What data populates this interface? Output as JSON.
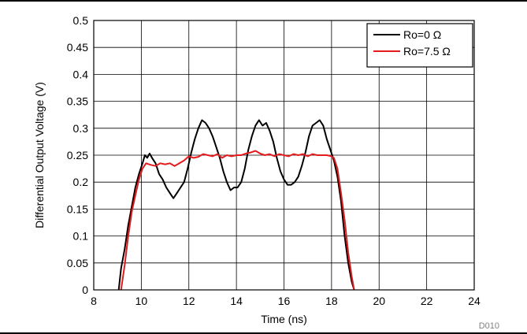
{
  "chart_data": {
    "type": "line",
    "xlabel": "Time (ns)",
    "ylabel": "Differential Output Voltage (V)",
    "xlim": [
      8,
      24
    ],
    "ylim": [
      0,
      0.5
    ],
    "xticks": [
      8,
      10,
      12,
      14,
      16,
      18,
      20,
      22,
      24
    ],
    "xtick_labels": [
      "8",
      "10",
      "12",
      "14",
      "16",
      "18",
      "20",
      "22",
      "24"
    ],
    "yticks": [
      0,
      0.05,
      0.1,
      0.15,
      0.2,
      0.25,
      0.3,
      0.35,
      0.4,
      0.45,
      0.5
    ],
    "ytick_labels": [
      "0",
      "0.05",
      "0.1",
      "0.15",
      "0.2",
      "0.25",
      "0.3",
      "0.35",
      "0.4",
      "0.45",
      "0.5"
    ],
    "grid": true,
    "legend_position": "top-right",
    "figure_id": "D010",
    "series": [
      {
        "name": "Ro=0 Ω",
        "color": "#000000",
        "x": [
          9.05,
          9.15,
          9.3,
          9.45,
          9.6,
          9.75,
          9.9,
          10.05,
          10.15,
          10.25,
          10.35,
          10.45,
          10.6,
          10.75,
          10.9,
          11.05,
          11.2,
          11.35,
          11.5,
          11.65,
          11.8,
          11.95,
          12.1,
          12.25,
          12.4,
          12.55,
          12.7,
          12.85,
          13.0,
          13.15,
          13.3,
          13.45,
          13.6,
          13.75,
          13.9,
          14.05,
          14.2,
          14.35,
          14.5,
          14.65,
          14.8,
          14.95,
          15.1,
          15.25,
          15.4,
          15.55,
          15.7,
          15.85,
          16.0,
          16.15,
          16.3,
          16.45,
          16.6,
          16.75,
          16.9,
          17.05,
          17.2,
          17.35,
          17.5,
          17.65,
          17.8,
          17.95,
          18.1,
          18.25,
          18.4,
          18.55,
          18.7,
          18.85,
          18.95
        ],
        "y": [
          0.0,
          0.04,
          0.075,
          0.12,
          0.155,
          0.19,
          0.215,
          0.235,
          0.25,
          0.245,
          0.253,
          0.245,
          0.235,
          0.215,
          0.205,
          0.19,
          0.18,
          0.17,
          0.18,
          0.19,
          0.2,
          0.225,
          0.255,
          0.28,
          0.3,
          0.315,
          0.31,
          0.3,
          0.285,
          0.265,
          0.245,
          0.22,
          0.2,
          0.185,
          0.19,
          0.19,
          0.2,
          0.225,
          0.26,
          0.285,
          0.305,
          0.315,
          0.305,
          0.31,
          0.295,
          0.275,
          0.245,
          0.22,
          0.205,
          0.195,
          0.195,
          0.2,
          0.21,
          0.23,
          0.255,
          0.285,
          0.305,
          0.31,
          0.315,
          0.305,
          0.28,
          0.26,
          0.24,
          0.21,
          0.165,
          0.1,
          0.05,
          0.015,
          0.0
        ]
      },
      {
        "name": "Ro=7.5 Ω",
        "color": "#e41a1c",
        "x": [
          9.15,
          9.3,
          9.45,
          9.6,
          9.75,
          9.9,
          10.05,
          10.2,
          10.4,
          10.6,
          10.8,
          11.0,
          11.2,
          11.4,
          11.6,
          11.8,
          12.0,
          12.2,
          12.4,
          12.6,
          12.8,
          13.0,
          13.2,
          13.4,
          13.6,
          13.8,
          14.0,
          14.2,
          14.4,
          14.6,
          14.8,
          15.0,
          15.2,
          15.4,
          15.6,
          15.8,
          16.0,
          16.2,
          16.4,
          16.6,
          16.8,
          17.0,
          17.2,
          17.4,
          17.6,
          17.8,
          18.0,
          18.1,
          18.25,
          18.4,
          18.55,
          18.7,
          18.85,
          18.95
        ],
        "y": [
          0.0,
          0.045,
          0.1,
          0.145,
          0.175,
          0.205,
          0.225,
          0.235,
          0.232,
          0.23,
          0.235,
          0.233,
          0.235,
          0.23,
          0.235,
          0.24,
          0.248,
          0.245,
          0.247,
          0.252,
          0.25,
          0.248,
          0.252,
          0.245,
          0.25,
          0.248,
          0.25,
          0.25,
          0.253,
          0.255,
          0.258,
          0.253,
          0.25,
          0.252,
          0.248,
          0.252,
          0.25,
          0.248,
          0.252,
          0.25,
          0.252,
          0.248,
          0.252,
          0.25,
          0.25,
          0.25,
          0.248,
          0.245,
          0.225,
          0.18,
          0.13,
          0.07,
          0.025,
          0.0
        ]
      }
    ]
  }
}
